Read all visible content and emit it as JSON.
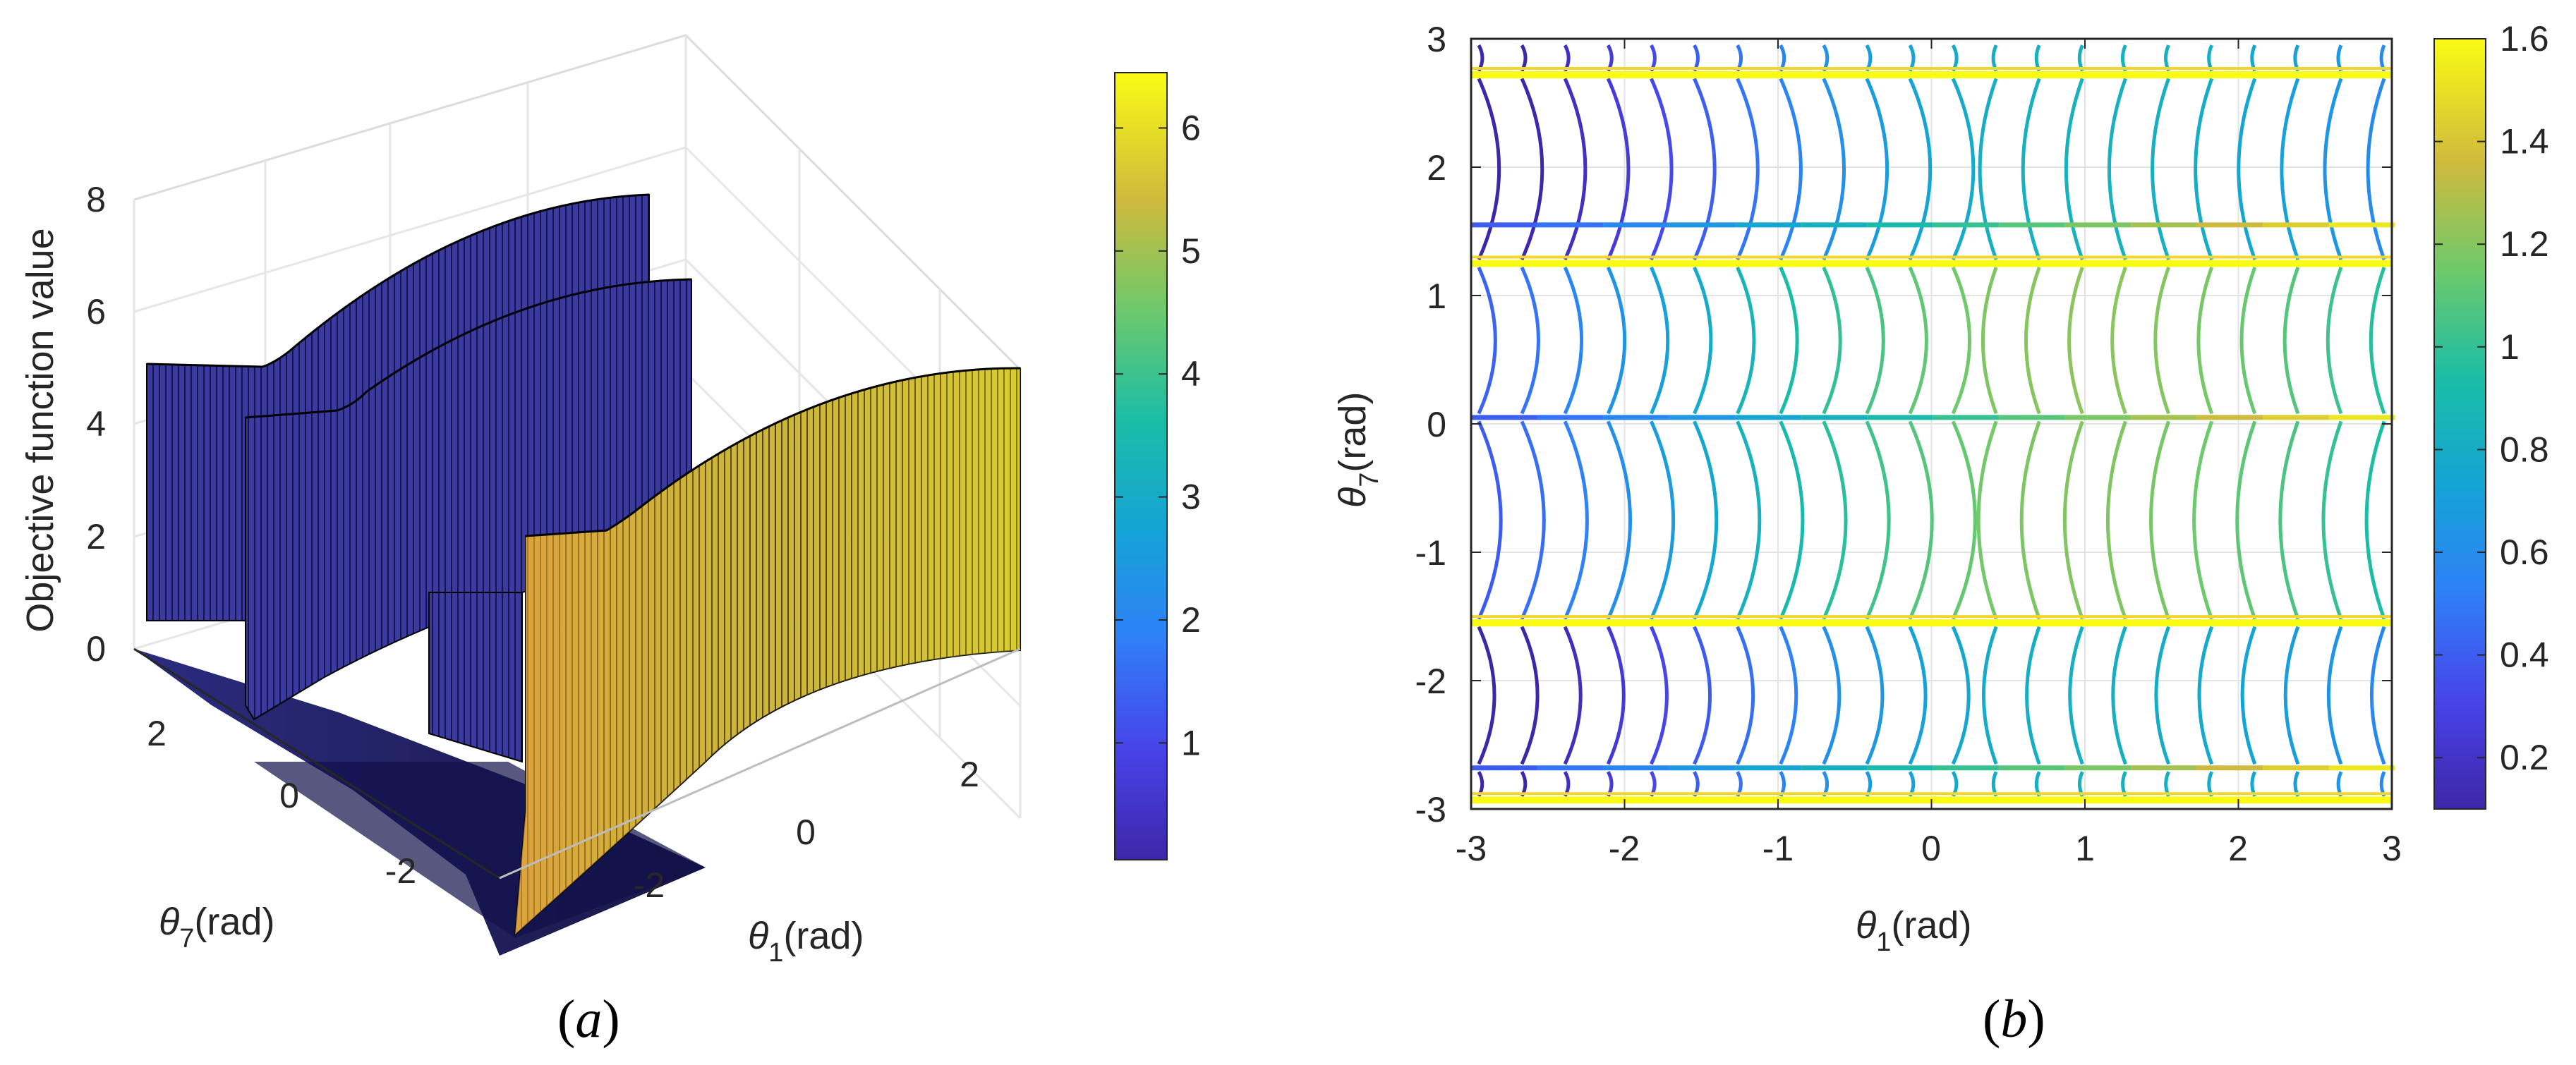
{
  "chart_data": [
    {
      "type": "surface3d",
      "panel_label": "a",
      "zlabel": "Objective function value",
      "xlabel_symbol": "θ",
      "xlabel_sub": "1",
      "xlabel_unit": "(rad)",
      "ylabel_symbol": "θ",
      "ylabel_sub": "7",
      "ylabel_unit": "(rad)",
      "z_ticks": [
        "0",
        "2",
        "4",
        "6",
        "8"
      ],
      "x_ticks": [
        "-2",
        "0",
        "2"
      ],
      "y_ticks": [
        "2",
        "0",
        "-2"
      ],
      "zlim": [
        0,
        8
      ],
      "xlim": [
        -3.14,
        3.14
      ],
      "ylim": [
        -3.14,
        3.14
      ],
      "colorbar": {
        "ticks": [
          "1",
          "2",
          "3",
          "4",
          "5",
          "6"
        ],
        "range": [
          0.05,
          6.45
        ]
      },
      "walls": [
        {
          "theta7": 2.7,
          "height_low_edge": 4.6,
          "height_peak": 7.0,
          "color_value": 0.6
        },
        {
          "theta7": 1.6,
          "height_low_edge": 3.7,
          "height_peak": 6.5,
          "color_value": 0.6
        },
        {
          "theta7": -1.5,
          "height_low_edge": 1.9,
          "height_peak": 2.2,
          "color_value": 0.7
        },
        {
          "theta7": -2.7,
          "height_low_edge": 2.1,
          "height_peak": 5.1,
          "color_value": 5.8
        }
      ]
    },
    {
      "type": "contour",
      "panel_label": "b",
      "xlabel_symbol": "θ",
      "xlabel_sub": "1",
      "xlabel_unit": "(rad)",
      "ylabel_symbol": "θ",
      "ylabel_sub": "7",
      "ylabel_unit": "(rad)",
      "x_ticks": [
        "-3",
        "-2",
        "-1",
        "0",
        "1",
        "2",
        "3"
      ],
      "y_ticks": [
        "3",
        "2",
        "1",
        "0",
        "-1",
        "-2",
        "-3"
      ],
      "xlim": [
        -3,
        3
      ],
      "ylim": [
        -3,
        3
      ],
      "grid": true,
      "colorbar": {
        "ticks": [
          "0.2",
          "0.4",
          "0.6",
          "0.8",
          "1",
          "1.2",
          "1.4",
          "1.6"
        ],
        "range": [
          0.1,
          1.6
        ]
      },
      "singular_lines_theta7": [
        2.72,
        1.25,
        -1.55,
        -2.93
      ],
      "dense_bands_theta7": [
        1.55,
        0.05,
        -2.68
      ]
    }
  ]
}
